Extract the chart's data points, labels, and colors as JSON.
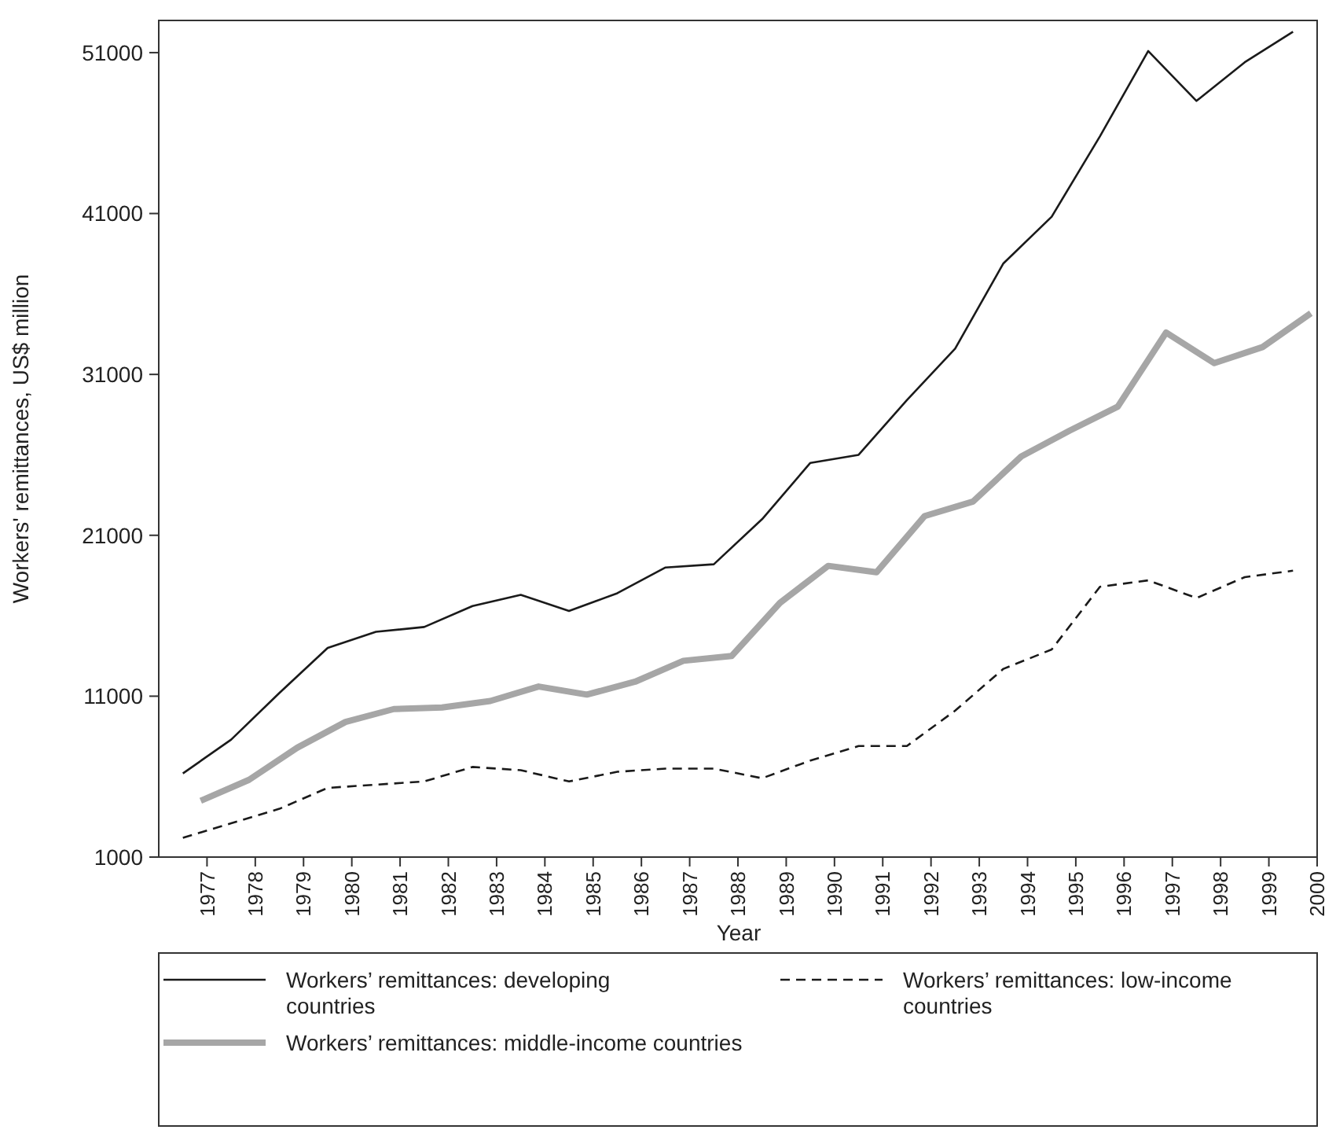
{
  "chart_data": {
    "type": "line",
    "xlabel": "Year",
    "ylabel": "Workers' remittances, US$ million",
    "xlim": [
      1976,
      2000
    ],
    "xticks": [
      1977,
      1978,
      1979,
      1980,
      1981,
      1982,
      1983,
      1984,
      1985,
      1986,
      1987,
      1988,
      1989,
      1990,
      1991,
      1992,
      1993,
      1994,
      1995,
      1996,
      1997,
      1998,
      1999,
      2000
    ],
    "ylim": [
      1000,
      53000
    ],
    "yticks": [
      1000,
      11000,
      21000,
      31000,
      41000,
      51000
    ],
    "x": [
      1976.5,
      1977.5,
      1978.5,
      1979.5,
      1980.5,
      1981.5,
      1982.5,
      1983.5,
      1984.5,
      1985.5,
      1986.5,
      1987.5,
      1988.5,
      1989.5,
      1990.5,
      1991.5,
      1992.5,
      1993.5,
      1994.5,
      1995.5,
      1996.5,
      1997.5,
      1998.5,
      1999.5
    ],
    "series": [
      {
        "name": "Workers’ remittances: developing countries",
        "color": "#1a1a1a",
        "line_style": "solid",
        "values": [
          6200,
          8300,
          11200,
          14000,
          15000,
          15300,
          16600,
          17300,
          16300,
          17400,
          19000,
          19200,
          22000,
          25500,
          26000,
          29400,
          32600,
          37900,
          40800,
          45800,
          51100,
          48000,
          50400,
          52300
        ]
      },
      {
        "name": "Workers’ remittances: low-income countries",
        "color": "#1a1a1a",
        "line_style": "dashed",
        "values": [
          2200,
          3100,
          4000,
          5300,
          5500,
          5700,
          6600,
          6400,
          5700,
          6300,
          6500,
          6500,
          5900,
          7000,
          7900,
          7900,
          10100,
          12700,
          13900,
          17800,
          18200,
          17100,
          18400,
          18800
        ]
      },
      {
        "name": "Workers’ remittances: middle-income countries",
        "color": "#a6a6a6",
        "line_style": "solid",
        "x": [
          1976.87,
          1977.87,
          1978.87,
          1979.87,
          1980.87,
          1981.87,
          1982.87,
          1983.87,
          1984.87,
          1985.87,
          1986.87,
          1987.87,
          1988.87,
          1989.87,
          1990.87,
          1991.87,
          1992.87,
          1993.87,
          1994.87,
          1995.87,
          1996.87,
          1997.87,
          1998.87,
          1999.87
        ],
        "values": [
          4500,
          5800,
          7800,
          9400,
          10200,
          10300,
          10700,
          11600,
          11100,
          11900,
          13200,
          13500,
          16800,
          19100,
          18700,
          22200,
          23100,
          25900,
          27500,
          29000,
          33600,
          31700,
          32700,
          34800
        ]
      }
    ],
    "legend": "bottom",
    "grid": false,
    "marker": "none"
  }
}
